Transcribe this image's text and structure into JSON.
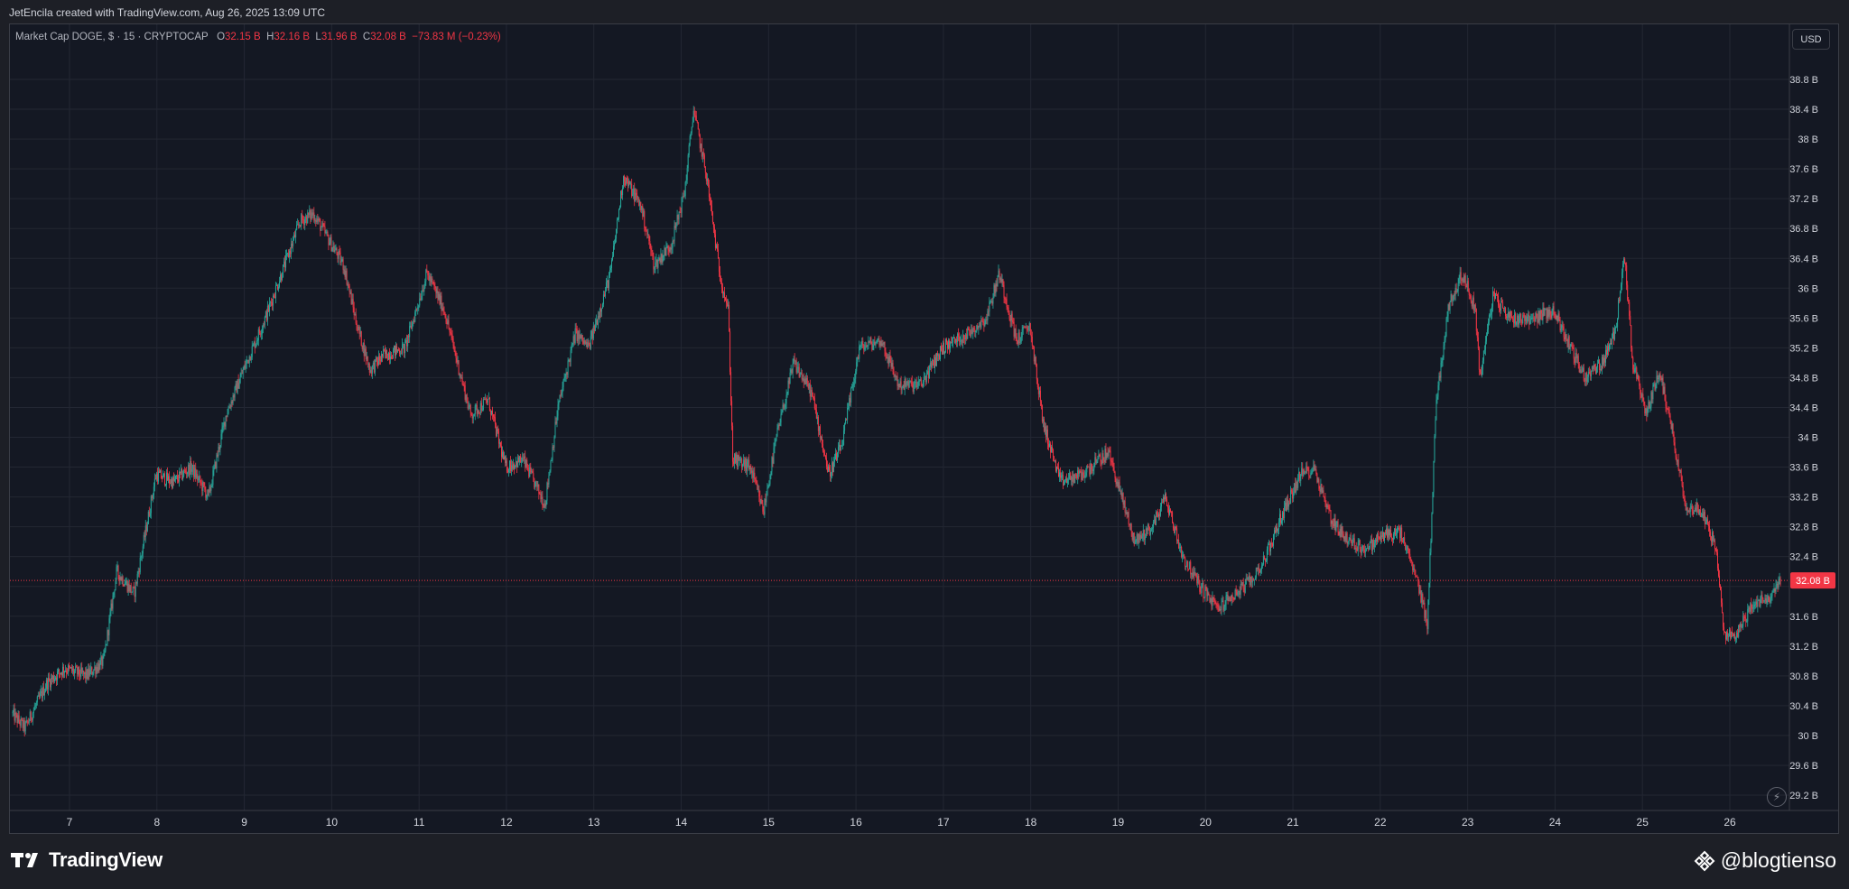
{
  "header": {
    "credit": "JetEncila created with TradingView.com, Aug 26, 2025 13:09 UTC"
  },
  "legend": {
    "symbol": "Market Cap DOGE, $ · 15 · CRYPTOCAP",
    "o_label": "O",
    "o_value": "32.15 B",
    "h_label": "H",
    "h_value": "32.16 B",
    "l_label": "L",
    "l_value": "31.96 B",
    "c_label": "C",
    "c_value": "32.08 B",
    "change": "−73.83 M (−0.23%)"
  },
  "currency_button": "USD",
  "colors": {
    "up": "#26a69a",
    "down": "#f23645",
    "background": "#141823",
    "grid": "#232733",
    "axis_text": "#d1d4dc",
    "last_price_line": "#f23645"
  },
  "footer": {
    "logo": "TradingView",
    "watermark": "@blogtienso",
    "logo_icon": "tradingview-logo-icon",
    "watermark_icon": "binance-diamond-icon"
  },
  "chart_data": {
    "type": "candlestick",
    "interval": "15",
    "currency": "USD",
    "ylim": [
      29.0,
      39.0
    ],
    "y_ticks": [
      {
        "value": 29.2,
        "label": "29.2 B"
      },
      {
        "value": 29.6,
        "label": "29.6 B"
      },
      {
        "value": 30.0,
        "label": "30 B"
      },
      {
        "value": 30.4,
        "label": "30.4 B"
      },
      {
        "value": 30.8,
        "label": "30.8 B"
      },
      {
        "value": 31.2,
        "label": "31.2 B"
      },
      {
        "value": 31.6,
        "label": "31.6 B"
      },
      {
        "value": 32.0,
        "label": "32 B"
      },
      {
        "value": 32.4,
        "label": "32.4 B"
      },
      {
        "value": 32.8,
        "label": "32.8 B"
      },
      {
        "value": 33.2,
        "label": "33.2 B"
      },
      {
        "value": 33.6,
        "label": "33.6 B"
      },
      {
        "value": 34.0,
        "label": "34 B"
      },
      {
        "value": 34.4,
        "label": "34.4 B"
      },
      {
        "value": 34.8,
        "label": "34.8 B"
      },
      {
        "value": 35.2,
        "label": "35.2 B"
      },
      {
        "value": 35.6,
        "label": "35.6 B"
      },
      {
        "value": 36.0,
        "label": "36 B"
      },
      {
        "value": 36.4,
        "label": "36.4 B"
      },
      {
        "value": 36.8,
        "label": "36.8 B"
      },
      {
        "value": 37.2,
        "label": "37.2 B"
      },
      {
        "value": 37.6,
        "label": "37.6 B"
      },
      {
        "value": 38.0,
        "label": "38 B"
      },
      {
        "value": 38.4,
        "label": "38.4 B"
      },
      {
        "value": 38.8,
        "label": "38.8 B"
      }
    ],
    "x_ticks": [
      {
        "day": 7,
        "label": "7"
      },
      {
        "day": 8,
        "label": "8"
      },
      {
        "day": 9,
        "label": "9"
      },
      {
        "day": 10,
        "label": "10"
      },
      {
        "day": 11,
        "label": "11"
      },
      {
        "day": 12,
        "label": "12"
      },
      {
        "day": 13,
        "label": "13"
      },
      {
        "day": 14,
        "label": "14"
      },
      {
        "day": 15,
        "label": "15"
      },
      {
        "day": 16,
        "label": "16"
      },
      {
        "day": 17,
        "label": "17"
      },
      {
        "day": 18,
        "label": "18"
      },
      {
        "day": 19,
        "label": "19"
      },
      {
        "day": 20,
        "label": "20"
      },
      {
        "day": 21,
        "label": "21"
      },
      {
        "day": 22,
        "label": "22"
      },
      {
        "day": 23,
        "label": "23"
      },
      {
        "day": 24,
        "label": "24"
      },
      {
        "day": 25,
        "label": "25"
      },
      {
        "day": 26,
        "label": "26"
      }
    ],
    "x_range_days": [
      6.35,
      26.6
    ],
    "last_price": {
      "value": 32.08,
      "label": "32.08 B"
    },
    "path": [
      {
        "day": 6.35,
        "value": 30.3
      },
      {
        "day": 6.5,
        "value": 30.1
      },
      {
        "day": 6.75,
        "value": 30.7
      },
      {
        "day": 6.95,
        "value": 30.9
      },
      {
        "day": 7.2,
        "value": 30.8
      },
      {
        "day": 7.4,
        "value": 31.0
      },
      {
        "day": 7.55,
        "value": 32.2
      },
      {
        "day": 7.75,
        "value": 31.9
      },
      {
        "day": 8.0,
        "value": 33.5
      },
      {
        "day": 8.2,
        "value": 33.4
      },
      {
        "day": 8.4,
        "value": 33.6
      },
      {
        "day": 8.6,
        "value": 33.2
      },
      {
        "day": 8.8,
        "value": 34.3
      },
      {
        "day": 9.0,
        "value": 34.9
      },
      {
        "day": 9.25,
        "value": 35.6
      },
      {
        "day": 9.5,
        "value": 36.4
      },
      {
        "day": 9.65,
        "value": 36.9
      },
      {
        "day": 9.8,
        "value": 37.0
      },
      {
        "day": 10.0,
        "value": 36.6
      },
      {
        "day": 10.15,
        "value": 36.3
      },
      {
        "day": 10.3,
        "value": 35.5
      },
      {
        "day": 10.45,
        "value": 34.9
      },
      {
        "day": 10.6,
        "value": 35.1
      },
      {
        "day": 10.85,
        "value": 35.2
      },
      {
        "day": 11.1,
        "value": 36.2
      },
      {
        "day": 11.3,
        "value": 35.7
      },
      {
        "day": 11.45,
        "value": 35.0
      },
      {
        "day": 11.6,
        "value": 34.3
      },
      {
        "day": 11.8,
        "value": 34.5
      },
      {
        "day": 12.0,
        "value": 33.6
      },
      {
        "day": 12.2,
        "value": 33.7
      },
      {
        "day": 12.45,
        "value": 33.1
      },
      {
        "day": 12.6,
        "value": 34.4
      },
      {
        "day": 12.8,
        "value": 35.4
      },
      {
        "day": 12.95,
        "value": 35.2
      },
      {
        "day": 13.2,
        "value": 36.2
      },
      {
        "day": 13.35,
        "value": 37.5
      },
      {
        "day": 13.55,
        "value": 37.1
      },
      {
        "day": 13.7,
        "value": 36.3
      },
      {
        "day": 13.9,
        "value": 36.6
      },
      {
        "day": 14.05,
        "value": 37.3
      },
      {
        "day": 14.15,
        "value": 38.4
      },
      {
        "day": 14.3,
        "value": 37.5
      },
      {
        "day": 14.45,
        "value": 36.2
      },
      {
        "day": 14.55,
        "value": 35.7
      },
      {
        "day": 14.6,
        "value": 33.7
      },
      {
        "day": 14.8,
        "value": 33.6
      },
      {
        "day": 14.95,
        "value": 33.0
      },
      {
        "day": 15.1,
        "value": 34.0
      },
      {
        "day": 15.3,
        "value": 35.0
      },
      {
        "day": 15.5,
        "value": 34.6
      },
      {
        "day": 15.7,
        "value": 33.5
      },
      {
        "day": 15.85,
        "value": 33.9
      },
      {
        "day": 16.05,
        "value": 35.2
      },
      {
        "day": 16.3,
        "value": 35.3
      },
      {
        "day": 16.5,
        "value": 34.7
      },
      {
        "day": 16.75,
        "value": 34.7
      },
      {
        "day": 17.0,
        "value": 35.2
      },
      {
        "day": 17.3,
        "value": 35.4
      },
      {
        "day": 17.5,
        "value": 35.6
      },
      {
        "day": 17.65,
        "value": 36.2
      },
      {
        "day": 17.85,
        "value": 35.3
      },
      {
        "day": 18.0,
        "value": 35.5
      },
      {
        "day": 18.15,
        "value": 34.2
      },
      {
        "day": 18.35,
        "value": 33.4
      },
      {
        "day": 18.6,
        "value": 33.5
      },
      {
        "day": 18.9,
        "value": 33.8
      },
      {
        "day": 19.05,
        "value": 33.2
      },
      {
        "day": 19.2,
        "value": 32.6
      },
      {
        "day": 19.4,
        "value": 32.8
      },
      {
        "day": 19.55,
        "value": 33.2
      },
      {
        "day": 19.75,
        "value": 32.4
      },
      {
        "day": 19.95,
        "value": 32.0
      },
      {
        "day": 20.15,
        "value": 31.7
      },
      {
        "day": 20.35,
        "value": 31.9
      },
      {
        "day": 20.55,
        "value": 32.1
      },
      {
        "day": 20.7,
        "value": 32.4
      },
      {
        "day": 20.9,
        "value": 33.0
      },
      {
        "day": 21.1,
        "value": 33.5
      },
      {
        "day": 21.25,
        "value": 33.6
      },
      {
        "day": 21.45,
        "value": 32.9
      },
      {
        "day": 21.65,
        "value": 32.6
      },
      {
        "day": 21.85,
        "value": 32.5
      },
      {
        "day": 22.05,
        "value": 32.7
      },
      {
        "day": 22.25,
        "value": 32.7
      },
      {
        "day": 22.45,
        "value": 32.0
      },
      {
        "day": 22.55,
        "value": 31.5
      },
      {
        "day": 22.65,
        "value": 34.5
      },
      {
        "day": 22.8,
        "value": 35.8
      },
      {
        "day": 22.95,
        "value": 36.2
      },
      {
        "day": 23.1,
        "value": 35.7
      },
      {
        "day": 23.15,
        "value": 34.8
      },
      {
        "day": 23.3,
        "value": 35.9
      },
      {
        "day": 23.5,
        "value": 35.6
      },
      {
        "day": 23.75,
        "value": 35.6
      },
      {
        "day": 24.0,
        "value": 35.7
      },
      {
        "day": 24.15,
        "value": 35.3
      },
      {
        "day": 24.35,
        "value": 34.8
      },
      {
        "day": 24.55,
        "value": 35.0
      },
      {
        "day": 24.7,
        "value": 35.4
      },
      {
        "day": 24.8,
        "value": 36.5
      },
      {
        "day": 24.9,
        "value": 35.0
      },
      {
        "day": 25.05,
        "value": 34.3
      },
      {
        "day": 25.2,
        "value": 34.9
      },
      {
        "day": 25.35,
        "value": 34.1
      },
      {
        "day": 25.5,
        "value": 33.1
      },
      {
        "day": 25.7,
        "value": 33.0
      },
      {
        "day": 25.85,
        "value": 32.5
      },
      {
        "day": 25.95,
        "value": 31.3
      },
      {
        "day": 26.1,
        "value": 31.4
      },
      {
        "day": 26.3,
        "value": 31.8
      },
      {
        "day": 26.45,
        "value": 31.8
      },
      {
        "day": 26.58,
        "value": 32.08
      }
    ]
  }
}
